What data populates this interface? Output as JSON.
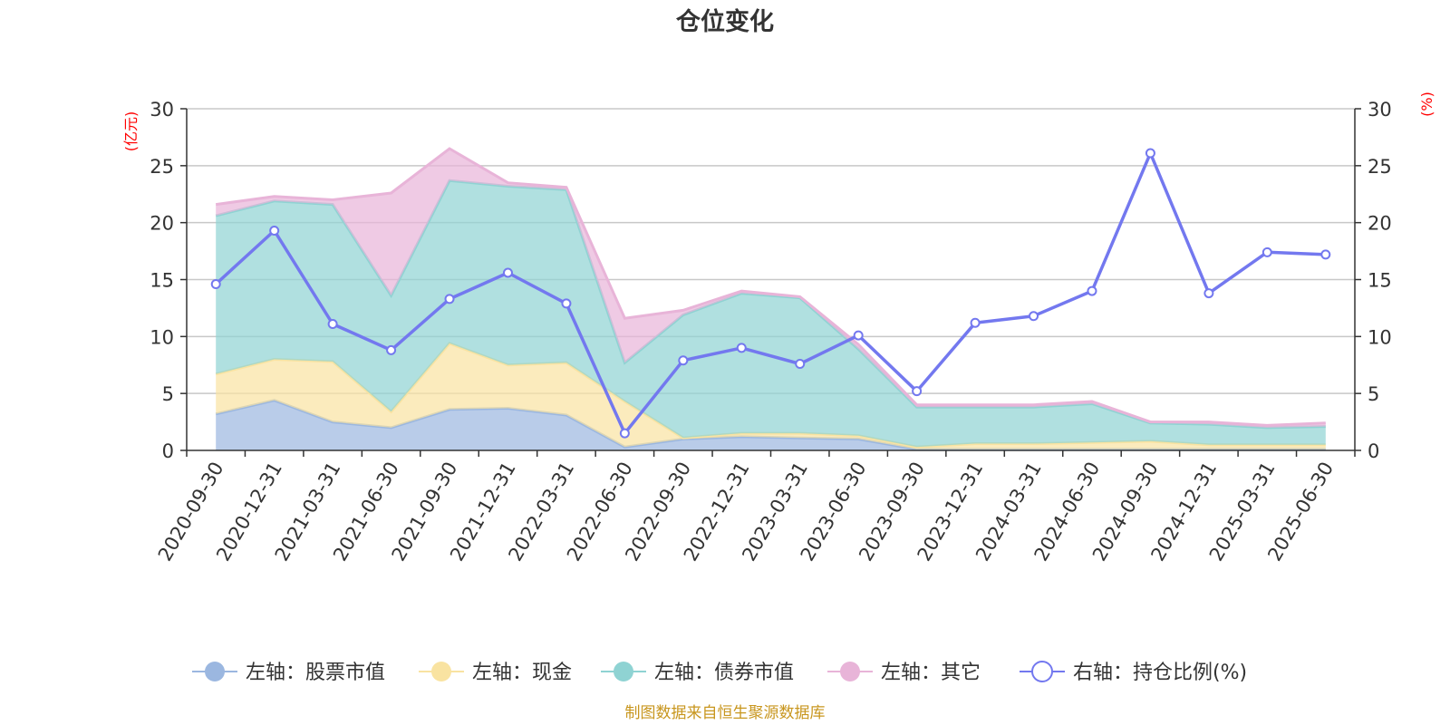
{
  "chart_data": {
    "type": "area",
    "title": "仓位变化",
    "left_axis_unit": "(亿元)",
    "right_axis_unit": "(%)",
    "left_ylim": [
      0,
      30
    ],
    "right_ylim": [
      0,
      30
    ],
    "y_ticks": [
      0,
      5,
      10,
      15,
      20,
      25,
      30
    ],
    "grid": true,
    "legend_position": "bottom",
    "stacked": true,
    "categories": [
      "2020-09-30",
      "2020-12-31",
      "2021-03-31",
      "2021-06-30",
      "2021-09-30",
      "2021-12-31",
      "2022-03-31",
      "2022-06-30",
      "2022-09-30",
      "2022-12-31",
      "2023-03-31",
      "2023-06-30",
      "2023-09-30",
      "2023-12-31",
      "2024-03-31",
      "2024-06-30",
      "2024-09-30",
      "2024-12-31",
      "2025-03-31",
      "2025-06-30"
    ],
    "series": [
      {
        "name": "左轴：股票市值",
        "axis": "left",
        "kind": "area",
        "color": "#9bb7e0",
        "values": [
          3.2,
          4.4,
          2.5,
          2.0,
          3.6,
          3.7,
          3.1,
          0.3,
          1.0,
          1.2,
          1.1,
          1.0,
          0.1,
          0.1,
          0.1,
          0.1,
          0.1,
          0.1,
          0.1,
          0.1
        ]
      },
      {
        "name": "左轴：现金",
        "axis": "left",
        "kind": "area",
        "color": "#f9e3a1",
        "values": [
          3.5,
          3.6,
          5.3,
          1.4,
          5.8,
          3.8,
          4.6,
          4.0,
          0.1,
          0.3,
          0.4,
          0.3,
          0.2,
          0.5,
          0.5,
          0.6,
          0.7,
          0.4,
          0.4,
          0.4
        ]
      },
      {
        "name": "左轴：债券市值",
        "axis": "left",
        "kind": "area",
        "color": "#8fd3d3",
        "values": [
          13.9,
          13.9,
          13.8,
          10.2,
          14.3,
          15.7,
          15.2,
          3.4,
          10.8,
          12.3,
          11.9,
          7.6,
          3.5,
          3.2,
          3.2,
          3.4,
          1.6,
          1.8,
          1.5,
          1.6
        ]
      },
      {
        "name": "左轴：其它",
        "axis": "left",
        "kind": "area",
        "color": "#e8b4d8",
        "values": [
          1.0,
          0.4,
          0.4,
          9.0,
          2.8,
          0.3,
          0.2,
          3.9,
          0.4,
          0.2,
          0.1,
          0.4,
          0.2,
          0.2,
          0.2,
          0.2,
          0.1,
          0.2,
          0.2,
          0.3
        ]
      },
      {
        "name": "右轴：持仓比例(%)",
        "axis": "right",
        "kind": "line",
        "color": "#7378ef",
        "values": [
          14.6,
          19.3,
          11.1,
          8.8,
          13.3,
          15.6,
          12.9,
          1.5,
          7.9,
          9.0,
          7.6,
          10.1,
          5.2,
          11.2,
          11.8,
          14.0,
          26.1,
          13.8,
          17.4,
          17.2
        ]
      }
    ],
    "source": "制图数据来自恒生聚源数据库"
  }
}
